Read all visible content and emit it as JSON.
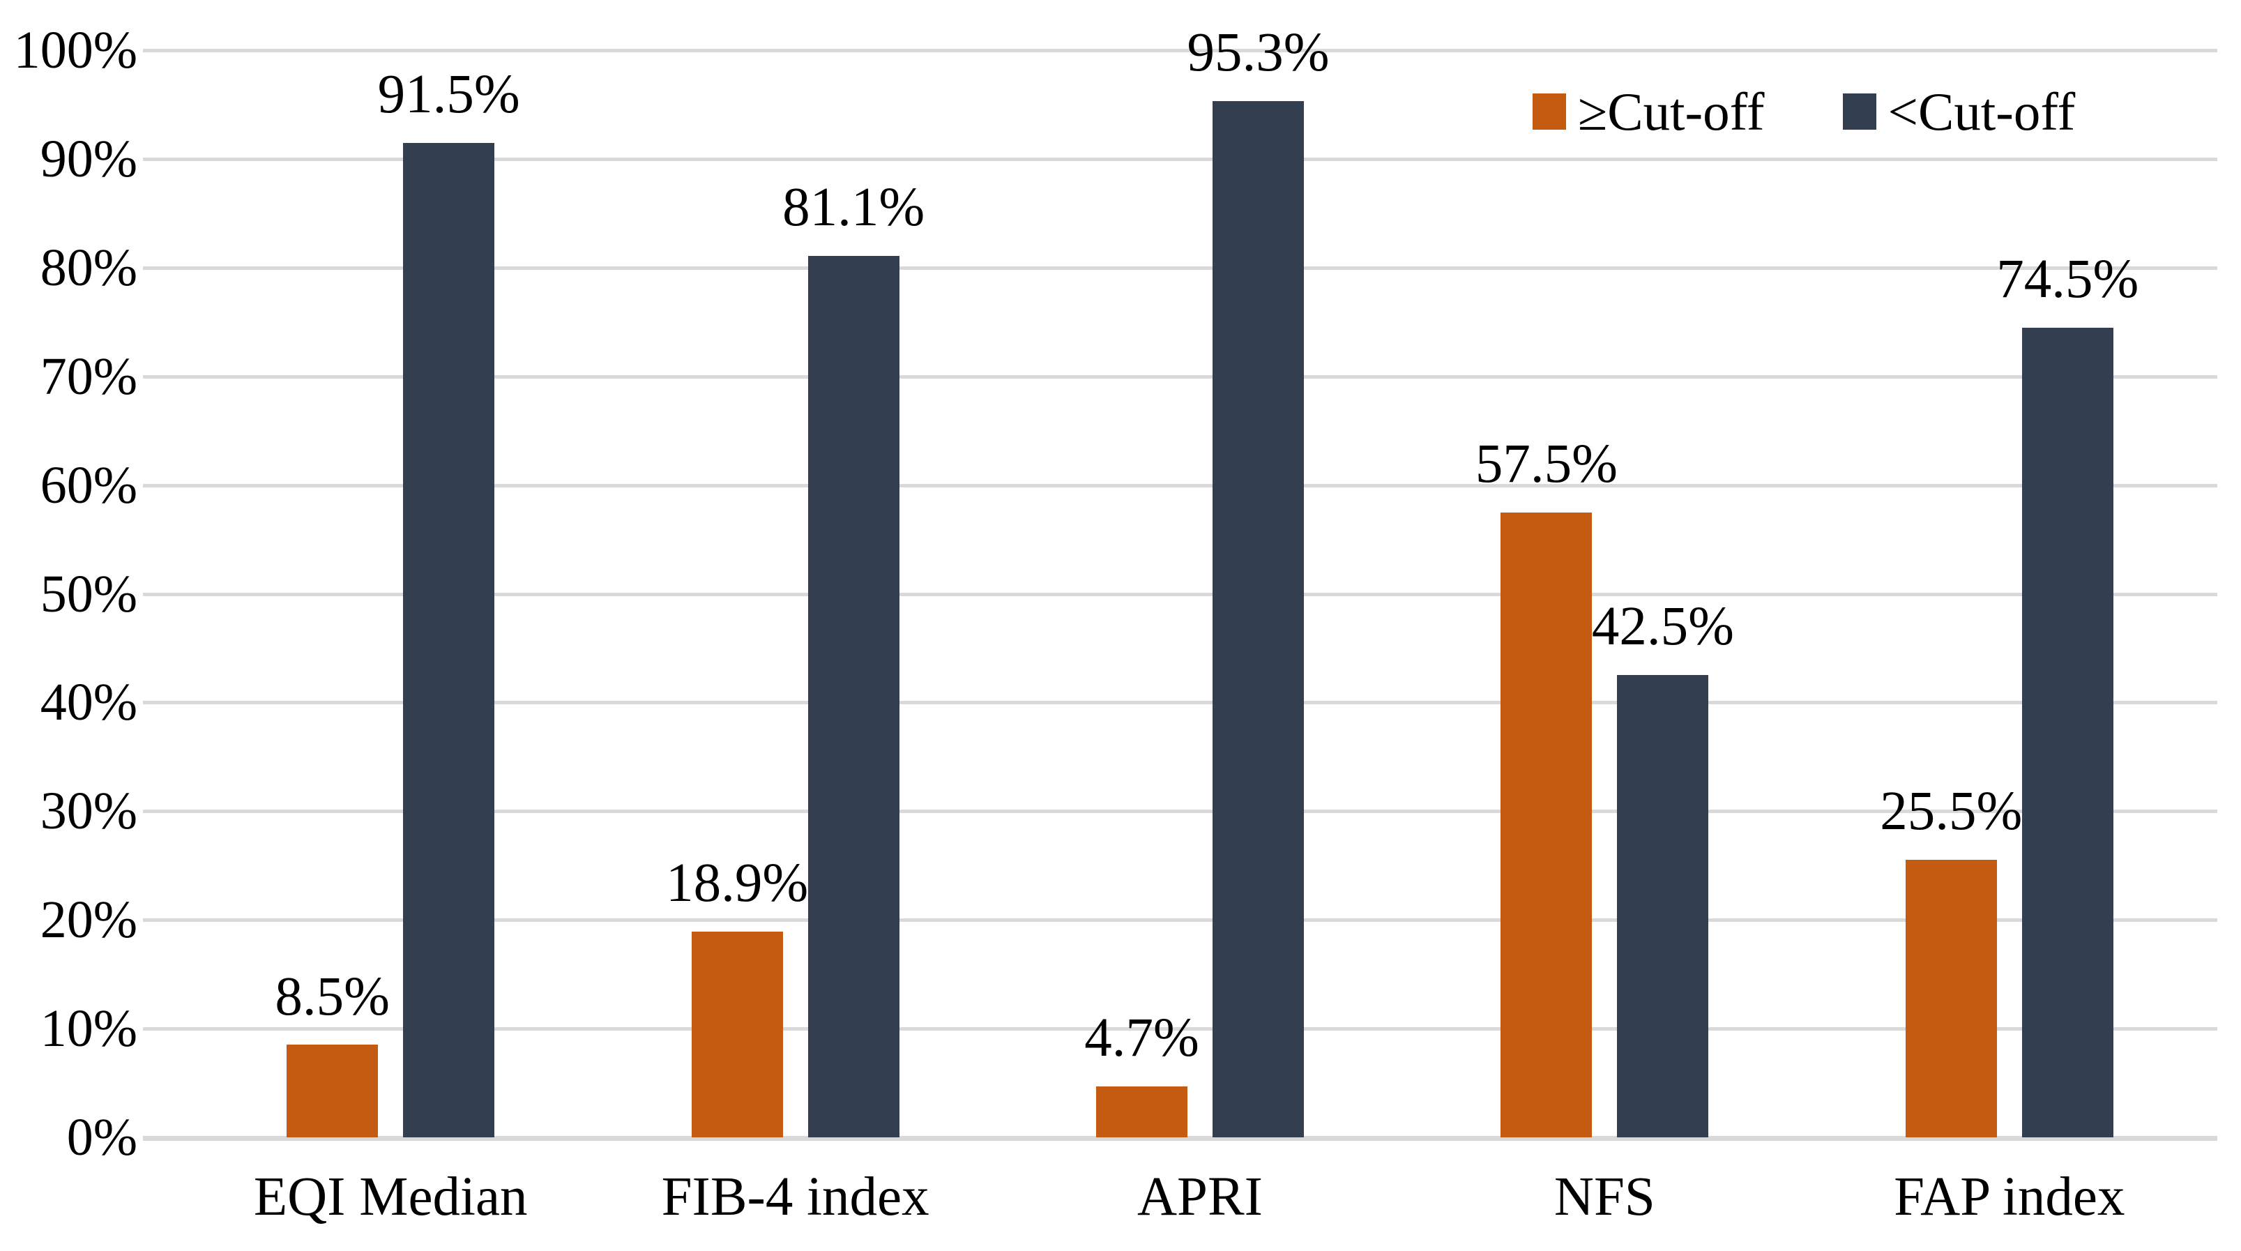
{
  "chart_data": {
    "type": "bar",
    "title": "",
    "xlabel": "",
    "ylabel": "",
    "categories": [
      "EQI Median",
      "FIB-4 index",
      "APRI",
      "NFS",
      "FAP index"
    ],
    "series": [
      {
        "name": "≥Cut-off",
        "color": "#C55A11",
        "values": [
          8.5,
          18.9,
          4.7,
          57.5,
          25.5
        ],
        "labels": [
          "8.5%",
          "18.9%",
          "4.7%",
          "57.5%",
          "25.5%"
        ]
      },
      {
        "name": "<Cut-off",
        "color": "#333F50",
        "values": [
          91.5,
          81.1,
          95.3,
          42.5,
          74.5
        ],
        "labels": [
          "91.5%",
          "81.1%",
          "95.3%",
          "42.5%",
          "74.5%"
        ]
      }
    ],
    "y_axis": {
      "min": 0,
      "max": 100,
      "tick_step": 10,
      "tick_labels": [
        "0%",
        "10%",
        "20%",
        "30%",
        "40%",
        "50%",
        "60%",
        "70%",
        "80%",
        "90%",
        "100%"
      ]
    },
    "legend": {
      "position": "top-right",
      "entries": [
        "≥Cut-off",
        "<Cut-off"
      ]
    },
    "grid": true,
    "colors": {
      "gridline": "#D9D9D9",
      "text": "#000000",
      "background": "#FFFFFF"
    }
  }
}
